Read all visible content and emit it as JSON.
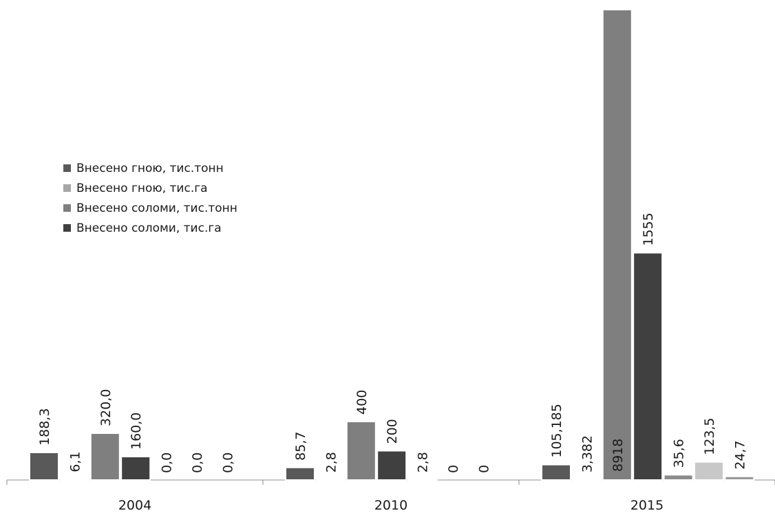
{
  "chart_data": {
    "type": "bar",
    "categories": [
      "2004",
      "2010",
      "2015"
    ],
    "series": [
      {
        "name": "Внесено гною, тис.тонн",
        "values": [
          188.3,
          85.7,
          105.185
        ]
      },
      {
        "name": "Внесено гною, тис.га",
        "values": [
          6.1,
          2.8,
          3.382
        ]
      },
      {
        "name": "Внесено соломи, тис.тонн",
        "values": [
          320.0,
          400,
          8918
        ]
      },
      {
        "name": "Внесено соломи, тис.га",
        "values": [
          160.0,
          200,
          1555
        ]
      },
      {
        "name": "",
        "values": [
          0.0,
          2.8,
          35.6
        ]
      },
      {
        "name": "",
        "values": [
          0.0,
          0,
          123.5
        ]
      },
      {
        "name": "",
        "values": [
          0.0,
          0,
          24.7
        ]
      }
    ],
    "value_labels": [
      [
        "188,3",
        "85,7",
        "105,185"
      ],
      [
        "6,1",
        "2,8",
        "3,382"
      ],
      [
        "320,0",
        "400",
        "8918"
      ],
      [
        "160,0",
        "200",
        "1555"
      ],
      [
        "0,0",
        "2,8",
        "35,6"
      ],
      [
        "0,0",
        "0",
        "123,5"
      ],
      [
        "0,0",
        "0",
        "24,7"
      ]
    ],
    "title": "",
    "xlabel": "",
    "ylabel": "",
    "grid": false,
    "legend_position": "left",
    "colors": [
      "#595959",
      "#a6a6a6",
      "#7f7f7f",
      "#404040",
      "#8c8c8c",
      "#c8c8c8",
      "#9a9a9a"
    ],
    "legend_colors": [
      "#595959",
      "#a6a6a6",
      "#7f7f7f",
      "#404040"
    ]
  }
}
